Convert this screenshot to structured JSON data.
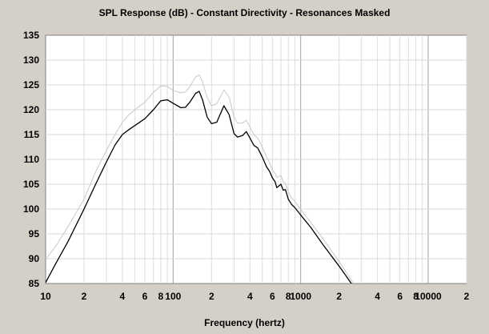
{
  "chart_data": {
    "type": "line",
    "title": "SPL Response (dB) - Constant Directivity - Resonances Masked",
    "xlabel": "Frequency (hertz)",
    "ylabel": "",
    "x_scale": "log",
    "xlim": [
      10,
      20000
    ],
    "ylim": [
      85,
      135
    ],
    "grid": true,
    "legend": "none",
    "x_tick_labels": [
      {
        "x": 10,
        "label": "10"
      },
      {
        "x": 20,
        "label": "2"
      },
      {
        "x": 40,
        "label": "4"
      },
      {
        "x": 60,
        "label": "6"
      },
      {
        "x": 80,
        "label": "8"
      },
      {
        "x": 100,
        "label": "100"
      },
      {
        "x": 200,
        "label": "2"
      },
      {
        "x": 400,
        "label": "4"
      },
      {
        "x": 600,
        "label": "6"
      },
      {
        "x": 800,
        "label": "8"
      },
      {
        "x": 1000,
        "label": "1000"
      },
      {
        "x": 2000,
        "label": "2"
      },
      {
        "x": 4000,
        "label": "4"
      },
      {
        "x": 6000,
        "label": "6"
      },
      {
        "x": 8000,
        "label": "8"
      },
      {
        "x": 10000,
        "label": "10000"
      },
      {
        "x": 20000,
        "label": "2"
      }
    ],
    "y_ticks": [
      85,
      90,
      95,
      100,
      105,
      110,
      115,
      120,
      125,
      130,
      135
    ],
    "series": [
      {
        "color": "#000000",
        "x": [
          10,
          12,
          15,
          20,
          25,
          30,
          35,
          40,
          45,
          50,
          60,
          70,
          80,
          90,
          100,
          115,
          125,
          135,
          150,
          160,
          170,
          185,
          200,
          220,
          250,
          275,
          300,
          320,
          350,
          375,
          400,
          430,
          460,
          500,
          540,
          570,
          600,
          630,
          650,
          700,
          730,
          760,
          800,
          850,
          900,
          1000,
          1200,
          1500,
          2000,
          2500
        ],
        "y": [
          85.2,
          89,
          93.5,
          100,
          105.3,
          109.5,
          112.9,
          115,
          116,
          116.8,
          118.2,
          120,
          121.8,
          122,
          121.3,
          120.4,
          120.5,
          121.5,
          123.3,
          123.7,
          122,
          118.5,
          117.2,
          117.5,
          120.8,
          119,
          115.2,
          114.5,
          114.8,
          115.6,
          114.3,
          112.8,
          112.3,
          110.5,
          108.5,
          107.6,
          106.3,
          105.5,
          104.3,
          105,
          103.8,
          103.9,
          102,
          100.9,
          100.3,
          98.8,
          96.3,
          92.8,
          88.5,
          85
        ]
      },
      {
        "color": "#c8c8c8",
        "x": [
          10,
          12,
          15,
          20,
          25,
          30,
          35,
          40,
          45,
          50,
          60,
          70,
          80,
          90,
          100,
          115,
          125,
          135,
          150,
          160,
          170,
          185,
          200,
          220,
          250,
          275,
          300,
          320,
          350,
          375,
          400,
          430,
          460,
          500,
          540,
          570,
          600,
          630,
          650,
          700,
          730,
          760,
          800,
          850,
          900,
          1000,
          1200,
          1500,
          2000,
          2600
        ],
        "y": [
          89.8,
          92.5,
          96.5,
          102,
          107.8,
          111.8,
          115,
          117.5,
          119,
          120,
          121.5,
          123.5,
          124.8,
          124.7,
          123.9,
          123.4,
          123.6,
          124.6,
          126.6,
          127,
          125.6,
          122.5,
          120.8,
          121.2,
          124,
          122.5,
          118.5,
          117.3,
          117.3,
          117.9,
          116.5,
          115,
          114.3,
          112.5,
          110.5,
          109.3,
          107.8,
          107.2,
          106.3,
          106.8,
          105.5,
          105.2,
          103.5,
          102.2,
          101.6,
          99.9,
          97.3,
          94,
          89.4,
          85
        ]
      }
    ]
  }
}
